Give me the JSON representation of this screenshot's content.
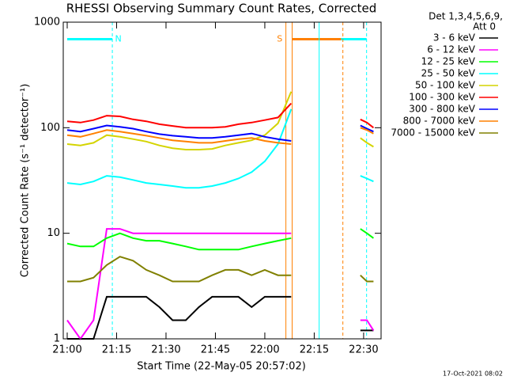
{
  "chart_data": {
    "type": "line",
    "title": "RHESSI Observing Summary Count Rates, Corrected",
    "y_label": "Corrected Count Rate (s⁻¹ detector⁻¹)",
    "x_label": "Start Time (22-May-05 20:57:02)",
    "legend_header": [
      "Det 1,3,4,5,6,9,",
      "Att 0"
    ],
    "footer": "17-Oct-2021 08:02",
    "log_y": true,
    "legend": "right",
    "xlim": [
      1258.8,
      1355.3
    ],
    "xticks": [
      {
        "value": 1260,
        "label": "21:00"
      },
      {
        "value": 1275,
        "label": "21:15"
      },
      {
        "value": 1290,
        "label": "21:30"
      },
      {
        "value": 1305,
        "label": "21:45"
      },
      {
        "value": 1320,
        "label": "22:00"
      },
      {
        "value": 1335,
        "label": "22:15"
      },
      {
        "value": 1350,
        "label": "22:30"
      }
    ],
    "ylim": [
      1,
      1000
    ],
    "yticks": [
      1,
      10,
      100,
      1000
    ],
    "x": [
      1260,
      1264,
      1268,
      1272,
      1276,
      1280,
      1284,
      1288,
      1292,
      1296,
      1300,
      1304,
      1308,
      1312,
      1316,
      1320,
      1324,
      1328,
      1338,
      1349,
      1351,
      1353
    ],
    "series": [
      {
        "name": "3 - 6 keV",
        "color": "#000000",
        "values": [
          1,
          1,
          1,
          2.5,
          2.5,
          2.5,
          2.5,
          2,
          1.5,
          1.5,
          2,
          2.5,
          2.5,
          2.5,
          2,
          2.5,
          2.5,
          2.5,
          null,
          1.2,
          1.2,
          1.2
        ]
      },
      {
        "name": "6 - 12 keV",
        "color": "#ff00ff",
        "values": [
          1.5,
          1,
          1.5,
          11,
          11,
          10,
          10,
          10,
          10,
          10,
          10,
          10,
          10,
          10,
          10,
          10,
          10,
          10,
          null,
          1.5,
          1.5,
          1.2
        ]
      },
      {
        "name": "12 - 25 keV",
        "color": "#00ff00",
        "values": [
          8,
          7.5,
          7.5,
          9,
          10,
          9,
          8.5,
          8.5,
          8,
          7.5,
          7,
          7,
          7,
          7,
          7.5,
          8,
          8.5,
          9,
          null,
          11,
          10,
          9
        ]
      },
      {
        "name": "25 - 50 keV",
        "color": "#00ffff",
        "values": [
          30,
          29,
          31,
          35,
          34,
          32,
          30,
          29,
          28,
          27,
          27,
          28,
          30,
          33,
          38,
          48,
          70,
          150,
          null,
          35,
          33,
          31
        ]
      },
      {
        "name": "50 - 100 keV",
        "color": "#d4d400",
        "values": [
          70,
          68,
          72,
          85,
          82,
          78,
          74,
          68,
          64,
          62,
          62,
          63,
          68,
          72,
          76,
          85,
          110,
          220,
          null,
          80,
          72,
          66
        ]
      },
      {
        "name": "100 - 300 keV",
        "color": "#ff0000",
        "values": [
          115,
          112,
          118,
          130,
          128,
          120,
          115,
          108,
          104,
          100,
          100,
          100,
          102,
          108,
          112,
          118,
          125,
          170,
          null,
          120,
          112,
          100
        ]
      },
      {
        "name": "300 - 800 keV",
        "color": "#0000ff",
        "values": [
          95,
          92,
          98,
          105,
          102,
          98,
          92,
          87,
          84,
          82,
          80,
          80,
          82,
          85,
          88,
          82,
          78,
          75,
          null,
          105,
          98,
          92
        ]
      },
      {
        "name": "800 - 7000 keV",
        "color": "#ff8000",
        "values": [
          85,
          82,
          88,
          95,
          92,
          88,
          84,
          80,
          76,
          74,
          72,
          72,
          75,
          78,
          80,
          75,
          72,
          70,
          null,
          100,
          95,
          88
        ]
      },
      {
        "name": "7000 - 15000 keV",
        "color": "#808000",
        "values": [
          3.5,
          3.5,
          3.8,
          5,
          6,
          5.5,
          4.5,
          4,
          3.5,
          3.5,
          3.5,
          4,
          4.5,
          4.5,
          4,
          4.5,
          4,
          4,
          null,
          4,
          3.5,
          3.5
        ]
      }
    ],
    "flag_level": 690,
    "flags": [
      {
        "start": 1260,
        "end": 1273.7,
        "color": "#00ffff"
      },
      {
        "start": 1328.3,
        "end": 1343.2,
        "color": "#ff8000"
      },
      {
        "start": 1343.2,
        "end": 1350.9,
        "color": "#00ffff"
      }
    ],
    "markers": [
      {
        "x": 1273.7,
        "color": "#00ffff",
        "style": "dashed"
      },
      {
        "x": 1326.4,
        "color": "#ff8000",
        "style": "solid"
      },
      {
        "x": 1328.3,
        "color": "#ff8000",
        "style": "solid"
      },
      {
        "x": 1336.5,
        "color": "#00ffff",
        "style": "solid"
      },
      {
        "x": 1343.7,
        "color": "#ff8000",
        "style": "dashed"
      },
      {
        "x": 1350.9,
        "color": "#00ffff",
        "style": "dashed"
      }
    ],
    "annotations": [
      {
        "text": "N",
        "x": 1275.5,
        "color": "#00ffff"
      },
      {
        "text": "S",
        "x": 1324.5,
        "color": "#ff8000"
      }
    ]
  }
}
